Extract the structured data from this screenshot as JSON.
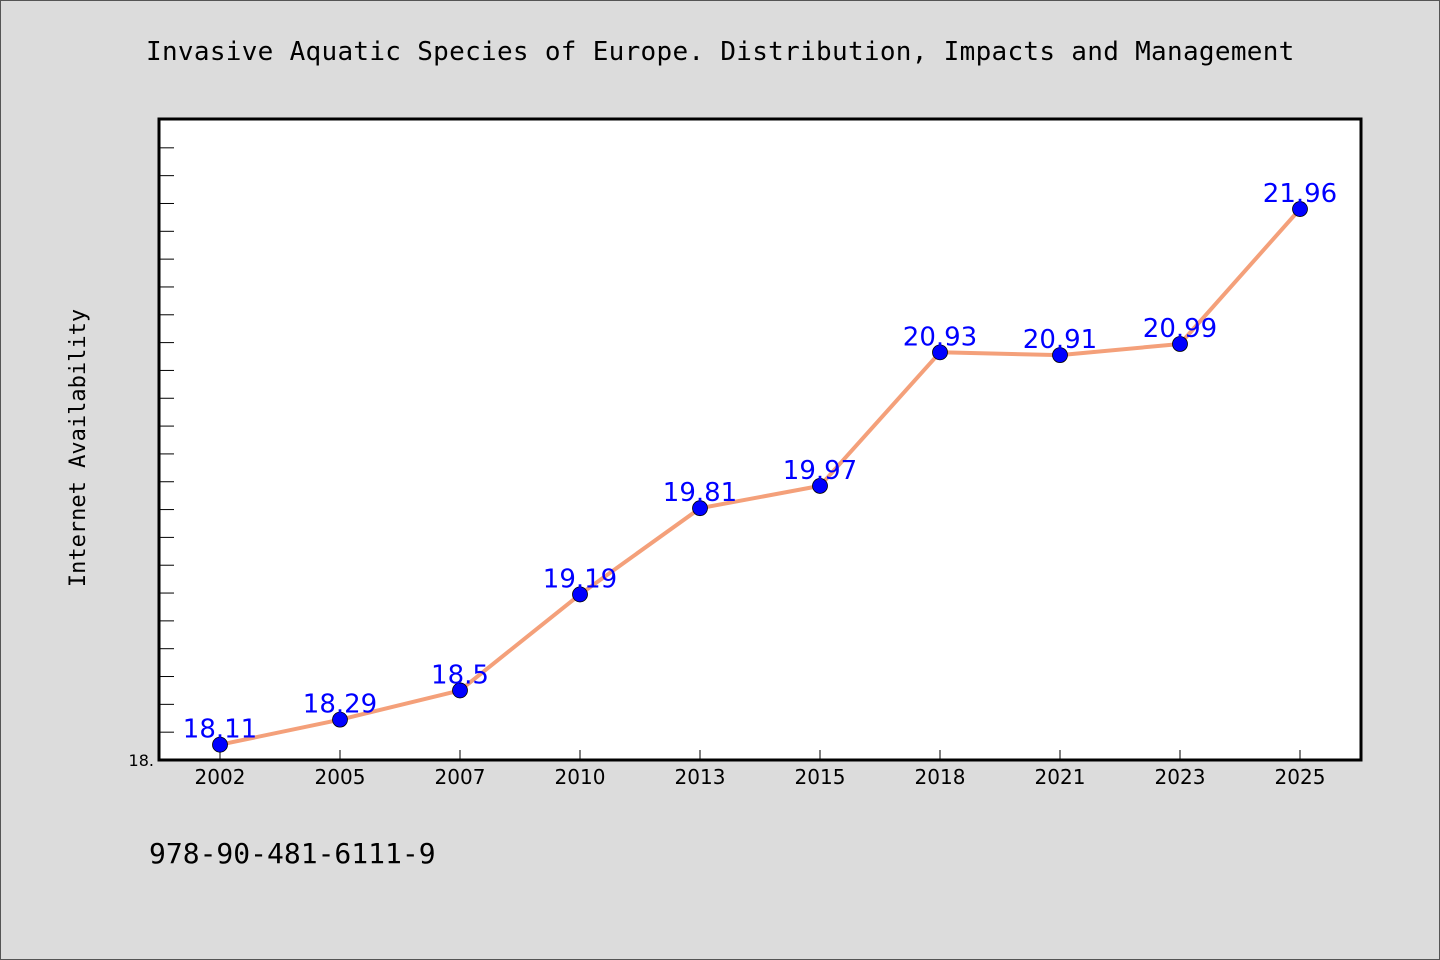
{
  "chart_data": {
    "type": "line",
    "title": "Invasive Aquatic Species of Europe. Distribution, Impacts and Management",
    "xlabel": "",
    "ylabel": "Internet Availability",
    "categories": [
      "2002",
      "2005",
      "2007",
      "2010",
      "2013",
      "2015",
      "2018",
      "2021",
      "2023",
      "2025"
    ],
    "values": [
      18.11,
      18.29,
      18.5,
      19.19,
      19.81,
      19.97,
      20.93,
      20.91,
      20.99,
      21.96
    ],
    "data_labels": [
      "18.11",
      "18.29",
      "18.5",
      "19.19",
      "19.81",
      "19.97",
      "20.93",
      "20.91",
      "20.99",
      "21.96"
    ],
    "ylim": [
      18.0,
      22.6
    ],
    "y_tick_label": "18.",
    "grid": false,
    "legend": "none",
    "colors": {
      "line": "#f4a07a",
      "marker": "#0000ff",
      "label": "#0000ff",
      "plot_bg": "#ffffff",
      "page_bg": "#dcdcdc"
    }
  },
  "footer": {
    "isbn": "978-90-481-6111-9"
  }
}
